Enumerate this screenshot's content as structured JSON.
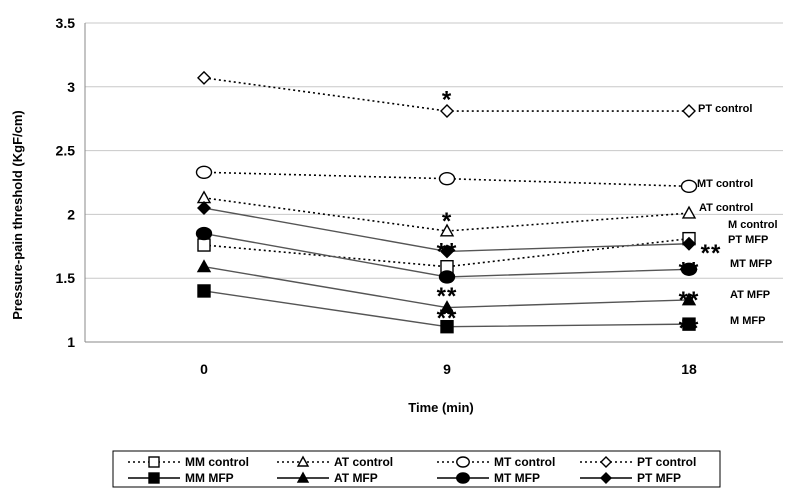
{
  "chart_data": {
    "type": "line",
    "x": [
      0,
      9,
      18
    ],
    "xlabel": "Time (min)",
    "ylabel": "Pressure-pain threshold (KgF/cm)",
    "ylim": [
      1,
      3.5
    ],
    "yticks": [
      "1",
      "1.5",
      "2",
      "2.5",
      "3",
      "3.5"
    ],
    "xticks": [
      "0",
      "9",
      "18"
    ],
    "grid": "horizontal",
    "legend_position": "bottom",
    "series": [
      {
        "name": "MM control",
        "values": [
          1.76,
          1.59,
          1.81
        ],
        "line": "dotted",
        "marker": "square-open",
        "end_label": "M control"
      },
      {
        "name": "MM MFP",
        "values": [
          1.4,
          1.12,
          1.14
        ],
        "line": "solid",
        "marker": "square-filled",
        "end_label": "M MFP"
      },
      {
        "name": "AT control",
        "values": [
          2.13,
          1.87,
          2.01
        ],
        "line": "dotted",
        "marker": "triangle-open",
        "end_label": "AT control"
      },
      {
        "name": "AT MFP",
        "values": [
          1.59,
          1.27,
          1.33
        ],
        "line": "solid",
        "marker": "triangle-filled",
        "end_label": "AT MFP"
      },
      {
        "name": "MT control",
        "values": [
          2.33,
          2.28,
          2.22
        ],
        "line": "dotted",
        "marker": "circle-open",
        "end_label": "MT control"
      },
      {
        "name": "MT MFP",
        "values": [
          1.85,
          1.51,
          1.57
        ],
        "line": "solid",
        "marker": "circle-filled",
        "end_label": "MT MFP"
      },
      {
        "name": "PT control",
        "values": [
          3.07,
          2.81,
          2.81
        ],
        "line": "dotted",
        "marker": "diamond-open",
        "end_label": "PT control"
      },
      {
        "name": "PT MFP",
        "values": [
          2.05,
          1.71,
          1.77
        ],
        "line": "solid",
        "marker": "diamond-filled",
        "end_label": "PT MFP"
      }
    ],
    "annotations": [
      {
        "text": "*",
        "x": 9,
        "y": 2.93
      },
      {
        "text": "*",
        "x": 9,
        "y": 1.98
      },
      {
        "text": "**",
        "x": 9,
        "y": 1.74
      },
      {
        "text": "**",
        "x": 9,
        "y": 1.39
      },
      {
        "text": "**",
        "x": 9,
        "y": 1.22
      },
      {
        "text": "**",
        "x": 18,
        "y": 1.73
      },
      {
        "text": "**",
        "x": 18,
        "y": 1.59
      },
      {
        "text": "**",
        "x": 18,
        "y": 1.36
      },
      {
        "text": "**",
        "x": 18,
        "y": 1.14
      }
    ]
  }
}
